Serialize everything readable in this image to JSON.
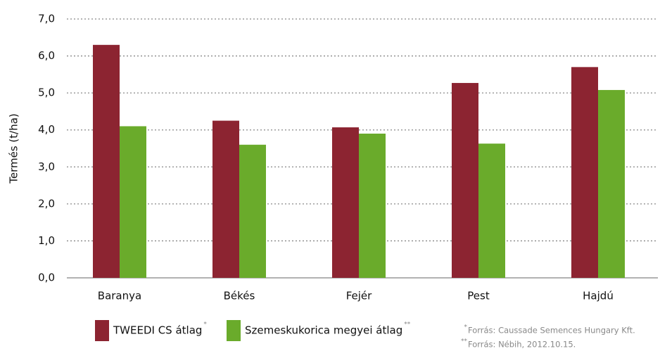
{
  "chart_data": {
    "type": "bar",
    "y_label": "Termés (t/ha)",
    "categories": [
      "Baranya",
      "Békés",
      "Fejér",
      "Pest",
      "Hajdú"
    ],
    "series": [
      {
        "name": "TWEEDI CS átlag",
        "marker": "*",
        "color": "#8c2431",
        "values": [
          6.3,
          4.25,
          4.07,
          5.27,
          5.7
        ]
      },
      {
        "name": "Szemeskukorica megyei átlag",
        "marker": "**",
        "color": "#6aab2b",
        "values": [
          4.1,
          3.6,
          3.9,
          3.63,
          5.08
        ]
      }
    ],
    "ylim": [
      0,
      7
    ],
    "yticks": [
      {
        "value": 0,
        "label": "0,0"
      },
      {
        "value": 1,
        "label": "1,0"
      },
      {
        "value": 2,
        "label": "2,0"
      },
      {
        "value": 3,
        "label": "3,0"
      },
      {
        "value": 4,
        "label": "4,0"
      },
      {
        "value": 5,
        "label": "5,0"
      },
      {
        "value": 6,
        "label": "6,0"
      },
      {
        "value": 7,
        "label": "7,0"
      }
    ],
    "grid": true,
    "footnotes": [
      {
        "mark": "*",
        "text": "Forrás:  Caussade Semences Hungary Kft."
      },
      {
        "mark": "**",
        "text": "Forrás:  Nébih, 2012.10.15."
      }
    ]
  }
}
